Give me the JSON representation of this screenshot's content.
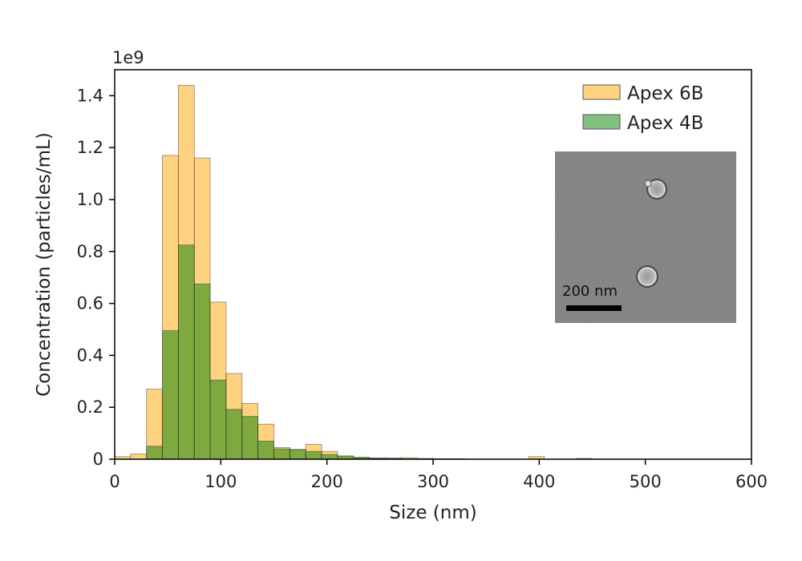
{
  "chart_data": {
    "type": "bar",
    "xlabel": "Size (nm)",
    "ylabel": "Concentration (particles/mL)",
    "y_scale_label": "1e9",
    "xlim": [
      0,
      600
    ],
    "ylim": [
      0,
      1.5
    ],
    "x_ticks": [
      "0",
      "100",
      "200",
      "300",
      "400",
      "500",
      "600"
    ],
    "y_ticks": [
      "0",
      "0.2",
      "0.4",
      "0.6",
      "0.8",
      "1.0",
      "1.2",
      "1.4"
    ],
    "grid": false,
    "legend_position": "top-right",
    "bin_width_nm": 15,
    "series": [
      {
        "name": "Apex 6B",
        "color": "#ffa500",
        "opacity": 0.5,
        "bin_starts": [
          0,
          15,
          30,
          45,
          60,
          75,
          90,
          105,
          120,
          135,
          150,
          165,
          180,
          195,
          210,
          225,
          240,
          255,
          270,
          285,
          300,
          315,
          390,
          435
        ],
        "values": [
          0.01,
          0.02,
          0.27,
          1.17,
          1.44,
          1.16,
          0.605,
          0.33,
          0.215,
          0.135,
          0.045,
          0.035,
          0.057,
          0.03,
          0.01,
          0.005,
          0.004,
          0.005,
          0.006,
          0.003,
          0.002,
          0.002,
          0.01,
          0.003
        ]
      },
      {
        "name": "Apex 4B",
        "color": "#008000",
        "opacity": 0.5,
        "bin_starts": [
          0,
          15,
          30,
          45,
          60,
          75,
          90,
          105,
          120,
          135,
          150,
          165,
          180,
          195,
          210,
          225,
          240,
          255,
          270,
          285,
          300,
          315
        ],
        "values": [
          0.0,
          0.0,
          0.05,
          0.495,
          0.825,
          0.675,
          0.305,
          0.192,
          0.165,
          0.07,
          0.04,
          0.038,
          0.03,
          0.018,
          0.013,
          0.008,
          0.005,
          0.003,
          0.002,
          0.002,
          0.001,
          0.001
        ]
      }
    ]
  },
  "inset": {
    "scale_bar_label": "200 nm"
  }
}
